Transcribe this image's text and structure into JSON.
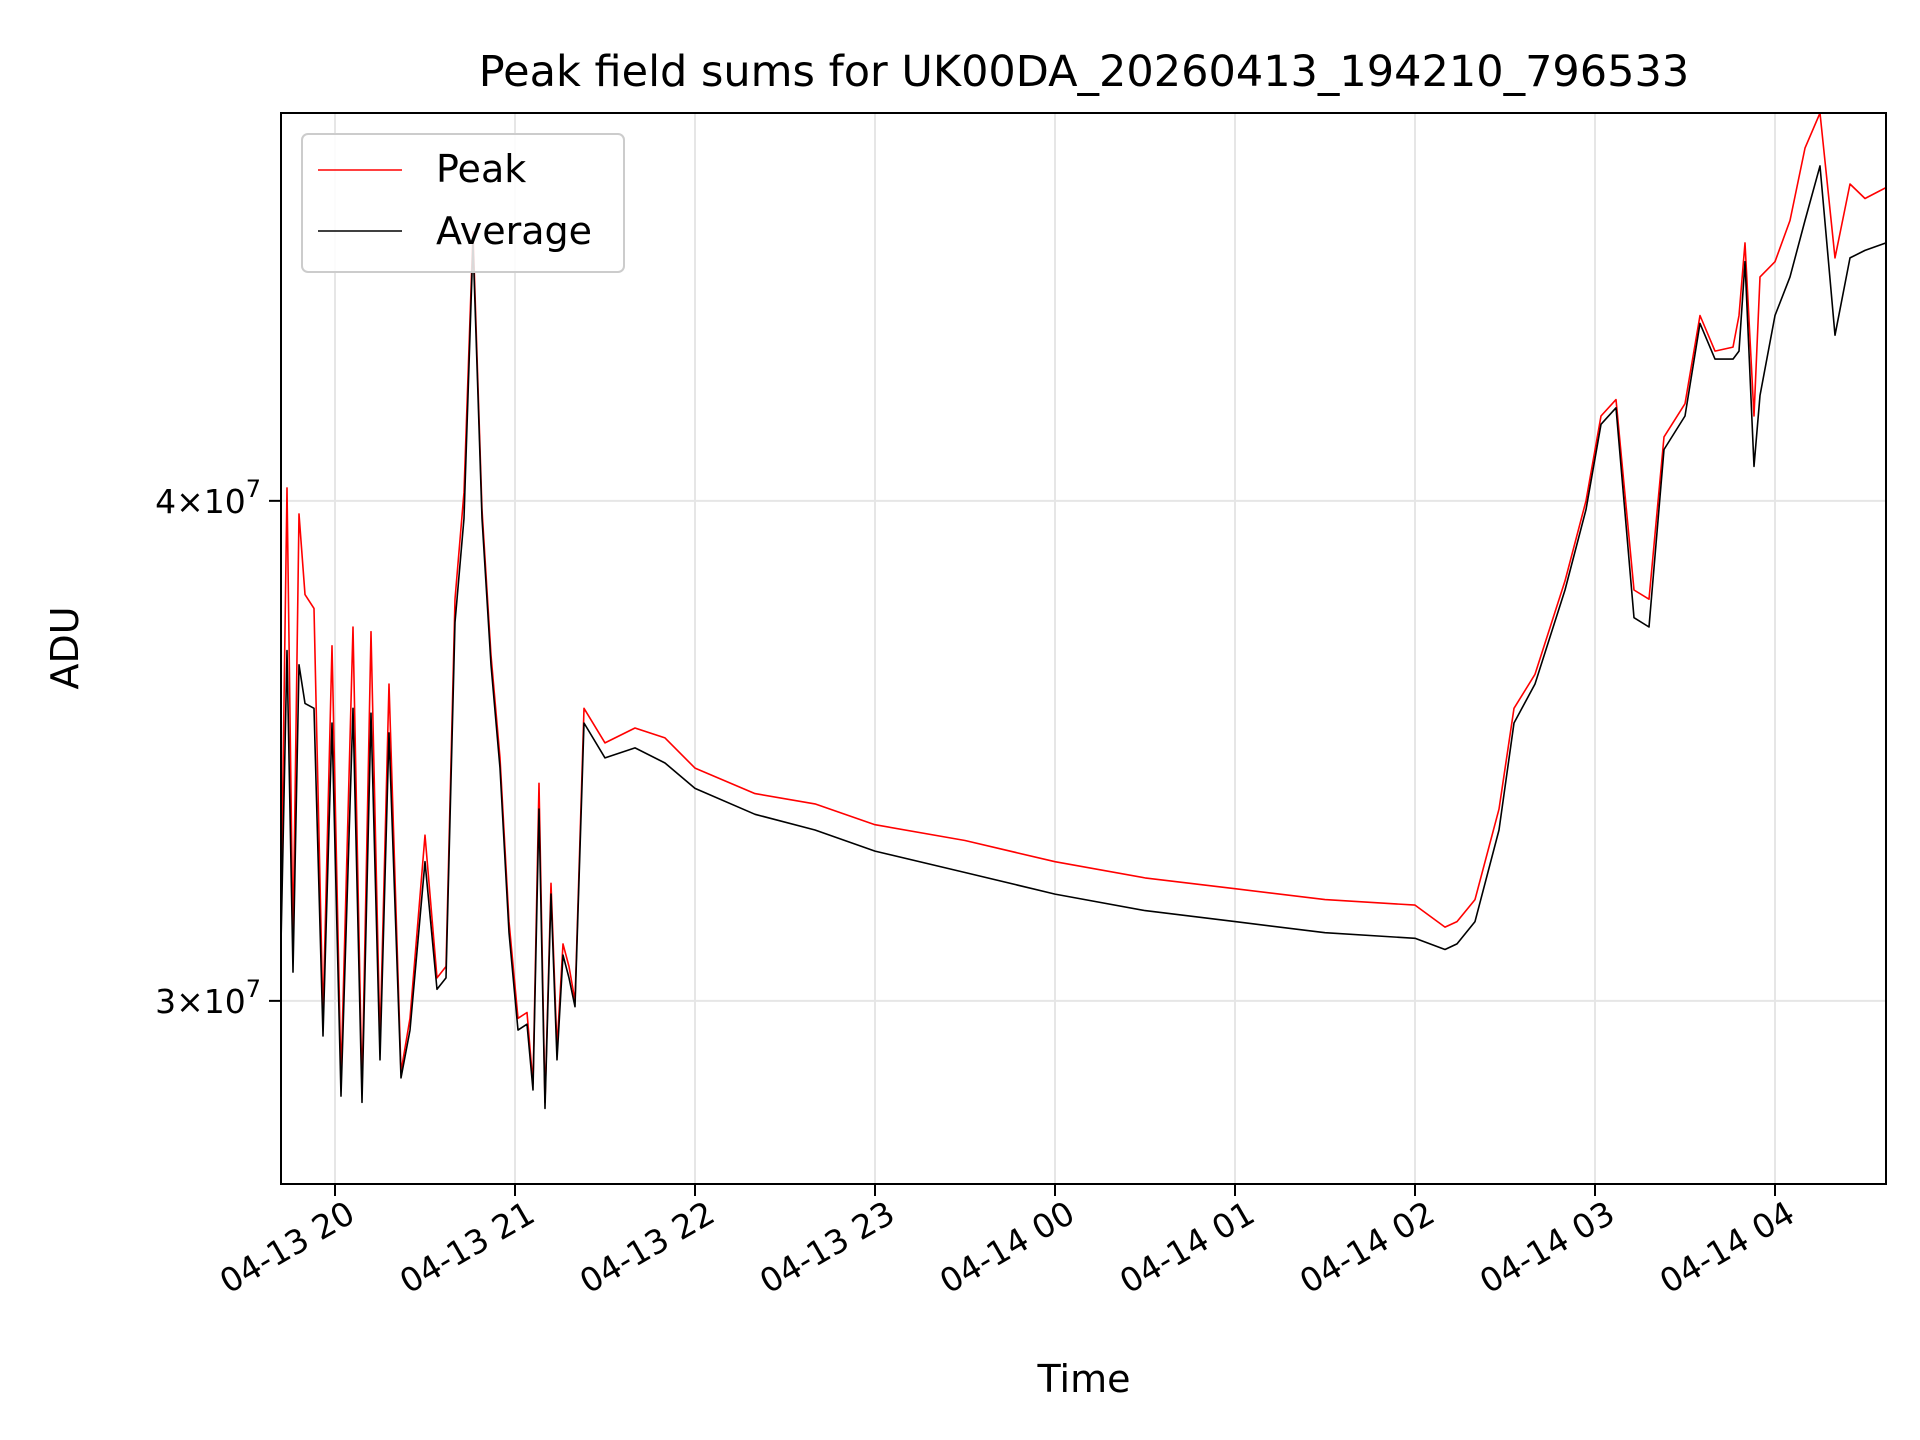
{
  "chart_data": {
    "type": "line",
    "title": "Peak field sums for UK00DA_20260413_194210_796533",
    "xlabel": "Time",
    "ylabel": "ADU",
    "x_axis": "datetime",
    "xlim": [
      "2026-04-13 19:42",
      "2026-04-14 04:37"
    ],
    "y_scale": "log",
    "ylim": [
      27000000,
      50000000
    ],
    "grid": true,
    "legend_position": "upper left",
    "x_ticks": [
      {
        "value": "2026-04-13 20:00",
        "label": "04-13 20"
      },
      {
        "value": "2026-04-13 21:00",
        "label": "04-13 21"
      },
      {
        "value": "2026-04-13 22:00",
        "label": "04-13 22"
      },
      {
        "value": "2026-04-13 23:00",
        "label": "04-13 23"
      },
      {
        "value": "2026-04-14 00:00",
        "label": "04-14 00"
      },
      {
        "value": "2026-04-14 01:00",
        "label": "04-14 01"
      },
      {
        "value": "2026-04-14 02:00",
        "label": "04-14 02"
      },
      {
        "value": "2026-04-14 03:00",
        "label": "04-14 03"
      },
      {
        "value": "2026-04-14 04:00",
        "label": "04-14 04"
      }
    ],
    "y_ticks": [
      {
        "value": 30000000,
        "mantissa": "3",
        "exponent": "7"
      },
      {
        "value": 40000000,
        "mantissa": "4",
        "exponent": "7"
      }
    ],
    "series": [
      {
        "name": "Peak",
        "color": "#ff0000",
        "x": [
          "2026-04-13 19:42",
          "2026-04-13 19:44",
          "2026-04-13 19:46",
          "2026-04-13 19:48",
          "2026-04-13 19:50",
          "2026-04-13 19:53",
          "2026-04-13 19:56",
          "2026-04-13 19:59",
          "2026-04-13 20:02",
          "2026-04-13 20:06",
          "2026-04-13 20:09",
          "2026-04-13 20:12",
          "2026-04-13 20:15",
          "2026-04-13 20:18",
          "2026-04-13 20:22",
          "2026-04-13 20:25",
          "2026-04-13 20:30",
          "2026-04-13 20:34",
          "2026-04-13 20:37",
          "2026-04-13 20:40",
          "2026-04-13 20:43",
          "2026-04-13 20:46",
          "2026-04-13 20:49",
          "2026-04-13 20:52",
          "2026-04-13 20:55",
          "2026-04-13 20:58",
          "2026-04-13 21:01",
          "2026-04-13 21:04",
          "2026-04-13 21:06",
          "2026-04-13 21:08",
          "2026-04-13 21:10",
          "2026-04-13 21:12",
          "2026-04-13 21:14",
          "2026-04-13 21:16",
          "2026-04-13 21:18",
          "2026-04-13 21:20",
          "2026-04-13 21:23",
          "2026-04-13 21:30",
          "2026-04-13 21:40",
          "2026-04-13 21:50",
          "2026-04-13 22:00",
          "2026-04-13 22:20",
          "2026-04-13 22:40",
          "2026-04-13 23:00",
          "2026-04-13 23:30",
          "2026-04-14 00:00",
          "2026-04-14 00:30",
          "2026-04-14 01:00",
          "2026-04-14 01:30",
          "2026-04-14 02:00",
          "2026-04-14 02:10",
          "2026-04-14 02:14",
          "2026-04-14 02:20",
          "2026-04-14 02:28",
          "2026-04-14 02:33",
          "2026-04-14 02:40",
          "2026-04-14 02:50",
          "2026-04-14 02:57",
          "2026-04-14 03:02",
          "2026-04-14 03:07",
          "2026-04-14 03:13",
          "2026-04-14 03:18",
          "2026-04-14 03:23",
          "2026-04-14 03:30",
          "2026-04-14 03:35",
          "2026-04-14 03:40",
          "2026-04-14 03:46",
          "2026-04-14 03:48",
          "2026-04-14 03:50",
          "2026-04-14 03:53",
          "2026-04-14 03:55",
          "2026-04-14 04:00",
          "2026-04-14 04:05",
          "2026-04-14 04:10",
          "2026-04-14 04:15",
          "2026-04-14 04:20",
          "2026-04-14 04:25",
          "2026-04-14 04:30",
          "2026-04-14 04:37"
        ],
        "y": [
          31500000,
          40300000,
          31000000,
          39700000,
          37900000,
          37600000,
          29700000,
          36800000,
          28700000,
          37200000,
          28500000,
          37100000,
          29300000,
          36000000,
          28800000,
          29700000,
          33000000,
          30400000,
          30600000,
          37800000,
          40200000,
          46700000,
          39800000,
          36600000,
          34500000,
          31400000,
          29700000,
          29800000,
          28600000,
          34000000,
          28300000,
          32100000,
          29200000,
          31000000,
          30600000,
          30000000,
          35500000,
          34800000,
          35100000,
          34900000,
          34300000,
          33800000,
          33600000,
          33200000,
          32900000,
          32500000,
          32200000,
          32000000,
          31800000,
          31700000,
          31300000,
          31400000,
          31800000,
          33500000,
          35500000,
          36200000,
          38200000,
          40000000,
          42000000,
          42400000,
          38000000,
          37800000,
          41500000,
          42300000,
          44500000,
          43600000,
          43700000,
          44500000,
          46400000,
          42000000,
          45500000,
          45900000,
          47000000,
          49000000,
          50000000,
          46000000,
          48000000,
          47600000,
          47900000
        ]
      },
      {
        "name": "Average",
        "color": "#000000",
        "x": [
          "2026-04-13 19:42",
          "2026-04-13 19:44",
          "2026-04-13 19:46",
          "2026-04-13 19:48",
          "2026-04-13 19:50",
          "2026-04-13 19:53",
          "2026-04-13 19:56",
          "2026-04-13 19:59",
          "2026-04-13 20:02",
          "2026-04-13 20:06",
          "2026-04-13 20:09",
          "2026-04-13 20:12",
          "2026-04-13 20:15",
          "2026-04-13 20:18",
          "2026-04-13 20:22",
          "2026-04-13 20:25",
          "2026-04-13 20:30",
          "2026-04-13 20:34",
          "2026-04-13 20:37",
          "2026-04-13 20:40",
          "2026-04-13 20:43",
          "2026-04-13 20:46",
          "2026-04-13 20:49",
          "2026-04-13 20:52",
          "2026-04-13 20:55",
          "2026-04-13 20:58",
          "2026-04-13 21:01",
          "2026-04-13 21:04",
          "2026-04-13 21:06",
          "2026-04-13 21:08",
          "2026-04-13 21:10",
          "2026-04-13 21:12",
          "2026-04-13 21:14",
          "2026-04-13 21:16",
          "2026-04-13 21:18",
          "2026-04-13 21:20",
          "2026-04-13 21:23",
          "2026-04-13 21:30",
          "2026-04-13 21:40",
          "2026-04-13 21:50",
          "2026-04-13 22:00",
          "2026-04-13 22:20",
          "2026-04-13 22:40",
          "2026-04-13 23:00",
          "2026-04-13 23:30",
          "2026-04-14 00:00",
          "2026-04-14 00:30",
          "2026-04-14 01:00",
          "2026-04-14 01:30",
          "2026-04-14 02:00",
          "2026-04-14 02:10",
          "2026-04-14 02:14",
          "2026-04-14 02:20",
          "2026-04-14 02:28",
          "2026-04-14 02:33",
          "2026-04-14 02:40",
          "2026-04-14 02:50",
          "2026-04-14 02:57",
          "2026-04-14 03:02",
          "2026-04-14 03:07",
          "2026-04-14 03:13",
          "2026-04-14 03:18",
          "2026-04-14 03:23",
          "2026-04-14 03:30",
          "2026-04-14 03:35",
          "2026-04-14 03:40",
          "2026-04-14 03:46",
          "2026-04-14 03:48",
          "2026-04-14 03:50",
          "2026-04-14 03:53",
          "2026-04-14 03:55",
          "2026-04-14 04:00",
          "2026-04-14 04:05",
          "2026-04-14 04:10",
          "2026-04-14 04:15",
          "2026-04-14 04:20",
          "2026-04-14 04:25",
          "2026-04-14 04:30",
          "2026-04-14 04:37"
        ],
        "y": [
          31000000,
          36700000,
          30500000,
          36400000,
          35600000,
          35500000,
          29400000,
          35200000,
          28400000,
          35500000,
          28300000,
          35400000,
          29000000,
          35000000,
          28700000,
          29500000,
          32500000,
          30200000,
          30400000,
          37300000,
          39600000,
          46400000,
          39600000,
          36400000,
          34300000,
          31200000,
          29500000,
          29600000,
          28500000,
          33500000,
          28200000,
          31900000,
          29000000,
          30800000,
          30400000,
          29900000,
          35200000,
          34500000,
          34700000,
          34400000,
          33900000,
          33400000,
          33100000,
          32700000,
          32300000,
          31900000,
          31600000,
          31400000,
          31200000,
          31100000,
          30900000,
          31000000,
          31400000,
          33100000,
          35200000,
          36000000,
          38000000,
          39800000,
          41800000,
          42200000,
          37400000,
          37200000,
          41200000,
          42000000,
          44300000,
          43400000,
          43400000,
          43600000,
          45900000,
          40800000,
          42500000,
          44500000,
          45500000,
          47000000,
          48500000,
          44000000,
          46000000,
          46200000,
          46400000
        ]
      }
    ]
  }
}
